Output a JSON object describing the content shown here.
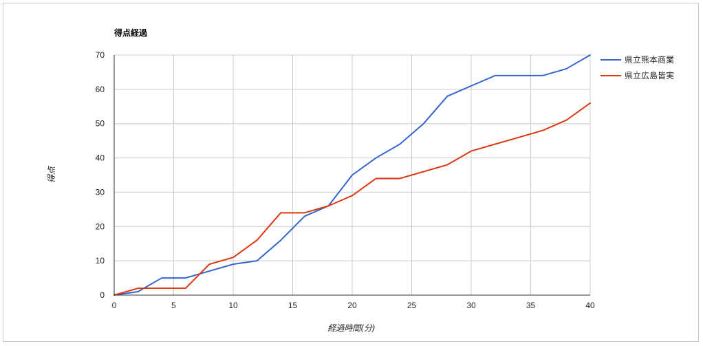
{
  "chart_data": {
    "type": "line",
    "title": "得点経過",
    "xlabel": "経過時間(分)",
    "ylabel": "得点",
    "xlim": [
      0,
      40
    ],
    "ylim": [
      0,
      70
    ],
    "xticks": [
      "0",
      "5",
      "10",
      "15",
      "20",
      "25",
      "30",
      "35",
      "40"
    ],
    "yticks": [
      "0",
      "10",
      "20",
      "30",
      "40",
      "50",
      "60",
      "70"
    ],
    "grid": true,
    "legend_position": "right",
    "series": [
      {
        "name": "県立熊本商業",
        "color": "#3366cc",
        "x": [
          0,
          2,
          4,
          6,
          8,
          10,
          12,
          14,
          16,
          18,
          20,
          22,
          24,
          26,
          28,
          30,
          32,
          34,
          36,
          38,
          40
        ],
        "y": [
          0,
          1,
          5,
          5,
          7,
          9,
          10,
          16,
          23,
          26,
          35,
          40,
          44,
          50,
          58,
          61,
          64,
          64,
          64,
          66,
          70
        ]
      },
      {
        "name": "県立広島皆実",
        "color": "#dc3912",
        "x": [
          0,
          2,
          4,
          6,
          8,
          10,
          12,
          14,
          16,
          18,
          20,
          22,
          24,
          26,
          28,
          30,
          32,
          34,
          36,
          38,
          40
        ],
        "y": [
          0,
          2,
          2,
          2,
          9,
          11,
          16,
          24,
          24,
          26,
          29,
          34,
          34,
          36,
          38,
          42,
          44,
          46,
          48,
          51,
          56
        ]
      }
    ]
  }
}
